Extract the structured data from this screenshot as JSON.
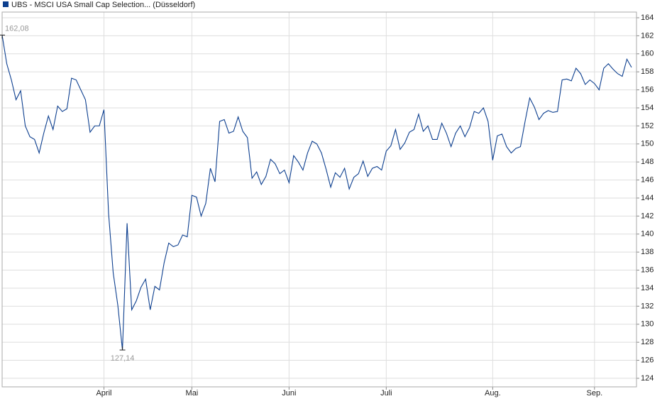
{
  "chart_data": {
    "type": "line",
    "categories": [
      null,
      null,
      null,
      null,
      null,
      null,
      null,
      null,
      null,
      null,
      null,
      null,
      null,
      null,
      null,
      null,
      null,
      null,
      null,
      null,
      null,
      null,
      "April",
      null,
      null,
      null,
      null,
      null,
      null,
      null,
      null,
      null,
      null,
      null,
      null,
      null,
      null,
      null,
      null,
      null,
      null,
      "Mai",
      null,
      null,
      null,
      null,
      null,
      null,
      null,
      null,
      null,
      null,
      null,
      null,
      null,
      null,
      null,
      null,
      null,
      null,
      null,
      null,
      "Juni",
      null,
      null,
      null,
      null,
      null,
      null,
      null,
      null,
      null,
      null,
      null,
      null,
      null,
      null,
      null,
      null,
      null,
      null,
      null,
      null,
      "Juli",
      null,
      null,
      null,
      null,
      null,
      null,
      null,
      null,
      null,
      null,
      null,
      null,
      null,
      null,
      null,
      null,
      null,
      null,
      null,
      null,
      null,
      null,
      "Aug.",
      null,
      null,
      null,
      null,
      null,
      null,
      null,
      null,
      null,
      null,
      null,
      null,
      null,
      null,
      null,
      null,
      null,
      null,
      null,
      null,
      null,
      "Sep.",
      null,
      null,
      null,
      null,
      null,
      null,
      null,
      null
    ],
    "series": [
      {
        "name": "UBS - MSCI USA Small Cap Selection... (Düsseldorf)",
        "color": "#0d3f8f",
        "values": [
          162.08,
          158.9,
          157.1,
          154.9,
          155.9,
          152,
          150.8,
          150.5,
          149,
          151.2,
          153.1,
          151.6,
          154.2,
          153.6,
          153.9,
          157.3,
          157.1,
          156,
          154.9,
          151.3,
          152,
          152,
          153.8,
          142.3,
          135.7,
          132.1,
          127.14,
          141.2,
          131.6,
          132.6,
          134.1,
          135,
          131.6,
          134.2,
          133.8,
          136.8,
          139,
          138.6,
          138.8,
          139.9,
          139.7,
          144.3,
          144.1,
          142,
          143.4,
          147.3,
          145.8,
          152.5,
          152.7,
          151.2,
          151.4,
          153,
          151.4,
          150.7,
          146.2,
          146.9,
          145.5,
          146.4,
          148.3,
          147.8,
          146.7,
          147.1,
          145.7,
          148.7,
          148,
          147.1,
          149,
          150.3,
          150,
          149,
          147.2,
          145.2,
          146.8,
          146.3,
          147.3,
          145,
          146.3,
          146.7,
          148.1,
          146.4,
          147.3,
          147.5,
          147.1,
          149.2,
          149.8,
          151.6,
          149.4,
          150.1,
          151.3,
          151.6,
          153.3,
          151.4,
          152,
          150.5,
          150.5,
          152.3,
          151.2,
          149.7,
          151.2,
          152,
          150.8,
          151.8,
          153.6,
          153.4,
          154,
          152.5,
          148.2,
          150.9,
          151.1,
          149.7,
          149,
          149.5,
          149.7,
          152.5,
          155.1,
          154.1,
          152.7,
          153.4,
          153.7,
          153.5,
          153.6,
          157.1,
          157.2,
          157,
          158.4,
          157.8,
          156.6,
          157.1,
          156.7,
          156,
          158.4,
          158.9,
          158.3,
          157.8,
          157.5,
          159.4,
          158.5
        ],
        "value_labels": [
          "162,08",
          null,
          null,
          null,
          null,
          null,
          null,
          null,
          null,
          null,
          null,
          null,
          null,
          null,
          null,
          null,
          null,
          null,
          null,
          null,
          null,
          null,
          null,
          null,
          null,
          null,
          "127,14",
          null,
          null,
          null,
          null,
          null,
          null,
          null,
          null,
          null,
          null,
          null,
          null,
          null,
          null,
          null,
          null,
          null,
          null,
          null,
          null,
          null,
          null,
          null,
          null,
          null,
          null,
          null,
          null,
          null,
          null,
          null,
          null,
          null,
          null,
          null,
          null,
          null,
          null,
          null,
          null,
          null,
          null,
          null,
          null,
          null,
          null,
          null,
          null,
          null,
          null,
          null,
          null,
          null,
          null,
          null,
          null,
          null,
          null,
          null,
          null,
          null,
          null,
          null,
          null,
          null,
          null,
          null,
          null,
          null,
          null,
          null,
          null,
          null,
          null,
          null,
          null,
          null,
          null,
          null,
          null,
          null,
          null,
          null,
          null,
          null,
          null,
          null,
          null,
          null,
          null,
          null,
          null,
          null,
          null,
          null,
          null,
          null,
          null,
          null,
          null,
          null,
          null,
          null,
          null,
          null,
          null,
          null,
          null,
          null,
          null
        ]
      }
    ],
    "ylim": [
      123.05,
      164.63
    ],
    "yticks": [
      124,
      126,
      128,
      130,
      132,
      134,
      136,
      138,
      140,
      142,
      144,
      146,
      148,
      150,
      152,
      154,
      156,
      158,
      160,
      162,
      164
    ],
    "grid": true,
    "legend": "top-left"
  }
}
